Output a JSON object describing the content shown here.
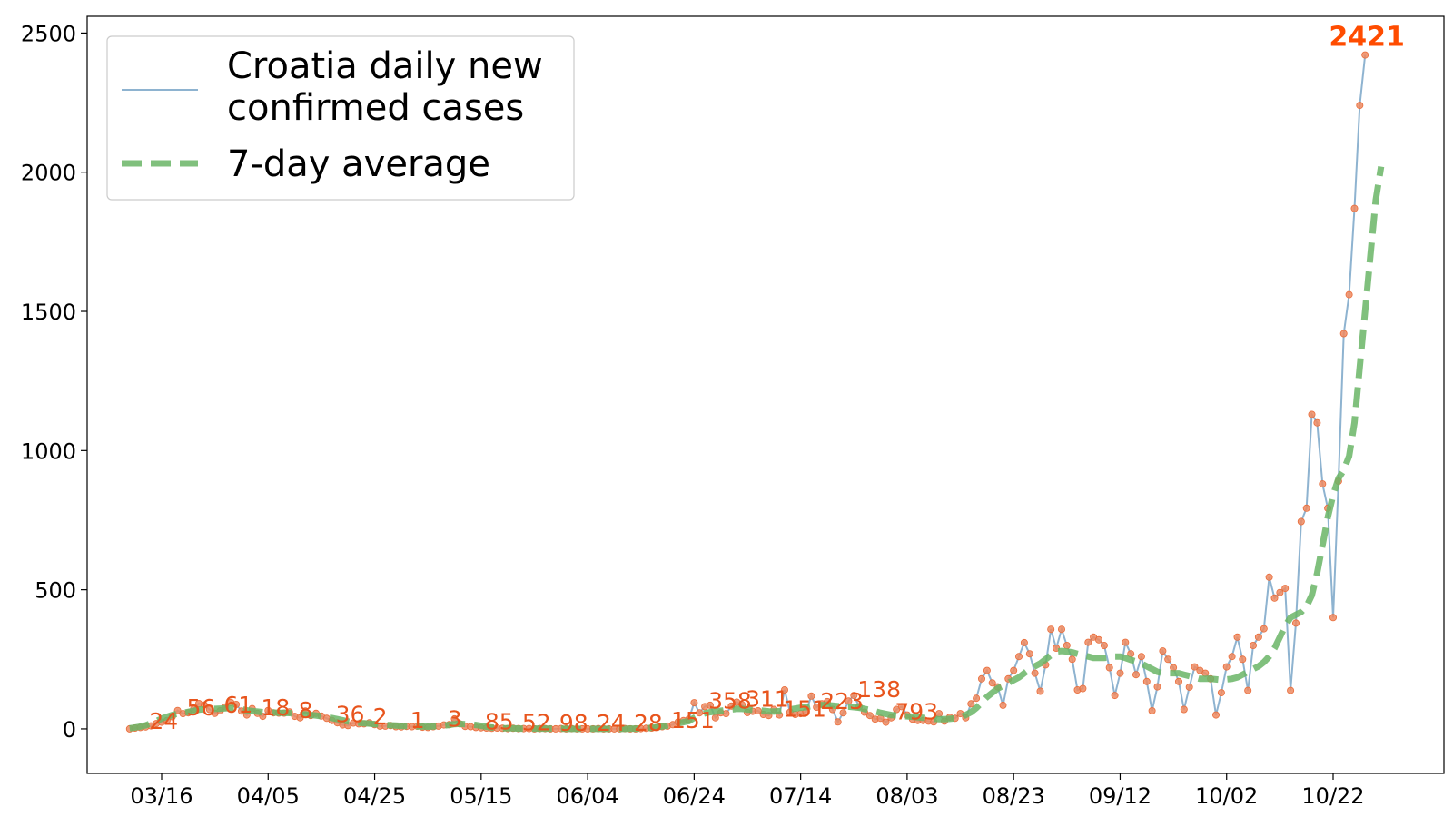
{
  "chart_data": {
    "type": "line",
    "title": "",
    "xlabel": "",
    "ylabel": "",
    "x_start_date": "2020-03-10",
    "x_ticks": [
      "03/16",
      "04/05",
      "04/25",
      "05/15",
      "06/04",
      "06/24",
      "07/14",
      "08/03",
      "08/23",
      "09/12",
      "10/02",
      "10/22"
    ],
    "y_ticks": [
      "0",
      "500",
      "1000",
      "1500",
      "2000",
      "2500"
    ],
    "ylim": [
      -160,
      2560
    ],
    "grid": false,
    "legend_position": "top-left",
    "series": [
      {
        "name": "Croatia daily new\nconfirmed cases",
        "color": "#8eb3d0",
        "values": [
          0,
          3,
          5,
          7,
          11,
          19,
          24,
          30,
          44,
          66,
          55,
          58,
          71,
          91,
          86,
          70,
          56,
          65,
          79,
          95,
          88,
          64,
          50,
          73,
          56,
          45,
          66,
          58,
          57,
          57,
          61,
          45,
          40,
          64,
          48,
          56,
          46,
          38,
          30,
          22,
          14,
          12,
          21,
          18,
          18,
          22,
          15,
          10,
          10,
          12,
          8,
          7,
          9,
          8,
          10,
          6,
          5,
          8,
          10,
          14,
          15,
          36,
          18,
          9,
          8,
          5,
          4,
          3,
          2,
          3,
          2,
          1,
          2,
          1,
          1,
          1,
          0,
          1,
          1,
          0,
          0,
          1,
          0,
          1,
          0,
          0,
          0,
          0,
          1,
          0,
          0,
          0,
          0,
          1,
          0,
          0,
          1,
          2,
          3,
          5,
          8,
          10,
          15,
          25,
          30,
          35,
          94,
          58,
          80,
          85,
          40,
          58,
          55,
          82,
          96,
          87,
          59,
          63,
          65,
          52,
          48,
          70,
          50,
          140,
          60,
          52,
          55,
          62,
          118,
          78,
          90,
          98,
          70,
          25,
          58,
          100,
          120,
          80,
          60,
          48,
          35,
          38,
          24,
          40,
          70,
          80,
          50,
          35,
          30,
          30,
          28,
          25,
          55,
          28,
          42,
          38,
          55,
          40,
          90,
          110,
          180,
          210,
          165,
          151,
          85,
          180,
          210,
          260,
          310,
          270,
          200,
          135,
          230,
          358,
          290,
          358,
          300,
          250,
          140,
          145,
          311,
          330,
          320,
          300,
          220,
          120,
          200,
          311,
          270,
          195,
          260,
          170,
          65,
          151,
          280,
          250,
          220,
          170,
          70,
          150,
          223,
          210,
          200,
          180,
          50,
          130,
          223,
          260,
          330,
          250,
          138,
          300,
          330,
          360,
          545,
          470,
          490,
          505,
          138,
          380,
          745,
          793,
          1130,
          1100,
          880,
          793,
          400,
          890,
          1420,
          1560,
          1870,
          2240,
          2421
        ]
      },
      {
        "name": "7-day average",
        "color": "#6ab566",
        "values": [
          2,
          5,
          8,
          13,
          20,
          28,
          37,
          44,
          50,
          55,
          58,
          61,
          65,
          69,
          71,
          72,
          72,
          73,
          74,
          75,
          74,
          71,
          67,
          64,
          62,
          60,
          59,
          59,
          58,
          58,
          57,
          56,
          53,
          52,
          50,
          48,
          45,
          42,
          39,
          35,
          31,
          27,
          24,
          22,
          20,
          19,
          17,
          16,
          15,
          13,
          12,
          11,
          10,
          9,
          9,
          9,
          8,
          9,
          10,
          12,
          14,
          17,
          18,
          17,
          16,
          14,
          11,
          8,
          5,
          3,
          2,
          2,
          2,
          1,
          1,
          1,
          1,
          1,
          1,
          1,
          1,
          1,
          0,
          0,
          0,
          0,
          0,
          0,
          0,
          0,
          0,
          0,
          0,
          0,
          1,
          1,
          1,
          2,
          4,
          6,
          9,
          12,
          16,
          20,
          24,
          28,
          40,
          50,
          56,
          60,
          62,
          65,
          68,
          70,
          72,
          72,
          70,
          68,
          67,
          65,
          63,
          62,
          64,
          66,
          70,
          73,
          76,
          78,
          82,
          85,
          86,
          85,
          84,
          82,
          80,
          80,
          78,
          76,
          72,
          68,
          63,
          58,
          54,
          50,
          48,
          46,
          45,
          44,
          42,
          40,
          38,
          36,
          35,
          35,
          36,
          38,
          42,
          50,
          60,
          75,
          95,
          115,
          130,
          145,
          155,
          165,
          175,
          185,
          200,
          215,
          225,
          235,
          250,
          265,
          278,
          280,
          278,
          275,
          270,
          265,
          260,
          255,
          255,
          255,
          257,
          260,
          260,
          255,
          248,
          242,
          235,
          225,
          215,
          205,
          200,
          200,
          200,
          200,
          195,
          190,
          185,
          180,
          180,
          180,
          178,
          176,
          178,
          180,
          185,
          195,
          205,
          215,
          225,
          240,
          260,
          290,
          330,
          370,
          400,
          410,
          420,
          440,
          480,
          560,
          660,
          760,
          840,
          900,
          930,
          980,
          1100,
          1300,
          1500,
          1700,
          1900,
          2020
        ]
      }
    ],
    "annotations": [
      "24",
      "56",
      "61",
      "18",
      "8",
      "36",
      "2",
      "1",
      "3",
      "85",
      "52",
      "98",
      "24",
      "28",
      "151",
      "358",
      "311",
      "151",
      "223",
      "138",
      "793"
    ],
    "max_label": "2421"
  },
  "legend": {
    "series1_line1": "Croatia daily new",
    "series1_line2": "confirmed cases",
    "series2": "7-day average"
  }
}
